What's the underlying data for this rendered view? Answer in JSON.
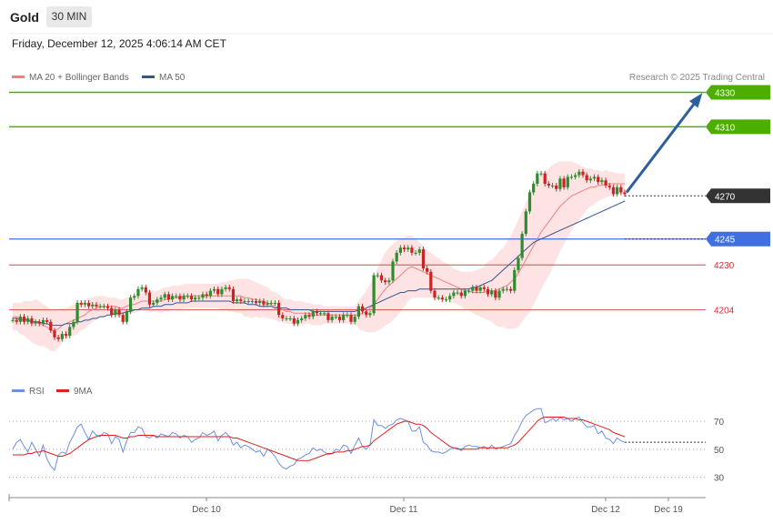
{
  "header": {
    "instrument": "Gold",
    "timeframe": "30 MIN",
    "datetime": "Friday, December 12, 2025 4:06:14 AM CET"
  },
  "legend": {
    "ma20": "MA 20 + Bollinger Bands",
    "ma50": "MA 50",
    "rsi": "RSI",
    "rsi_ma": "9MA"
  },
  "credit": "Research © 2025 Trading Central",
  "colors": {
    "up": "#2e8b2e",
    "down": "#cc2222",
    "target": "#4caf00",
    "pivot": "#3f6fe0",
    "support": "#cc3333",
    "ma20": "#f08080",
    "ma50": "#33558f",
    "band": "#fde3e3",
    "rsi": "#6f8fdf",
    "rsi_ma": "#dd2222",
    "arrow": "#2d5f9e",
    "last": "#333333"
  },
  "chart_data": [
    {
      "type": "candlestick",
      "title": "Gold 30 MIN",
      "x_ticks": [
        "Dec 10",
        "Dec 11",
        "Dec 12",
        "Dec 19"
      ],
      "ylim": [
        4170,
        4335
      ],
      "levels": [
        {
          "value": 4330,
          "label": "4330",
          "kind": "target"
        },
        {
          "value": 4310,
          "label": "4310",
          "kind": "target"
        },
        {
          "value": 4270,
          "label": "4270",
          "kind": "last"
        },
        {
          "value": 4245,
          "label": "4245",
          "kind": "pivot"
        },
        {
          "value": 4230,
          "label": "4230",
          "kind": "support"
        },
        {
          "value": 4204,
          "label": "4204",
          "kind": "support"
        }
      ],
      "closes": [
        4198,
        4197,
        4200,
        4197,
        4199,
        4196,
        4197,
        4196,
        4198,
        4197,
        4192,
        4188,
        4187,
        4190,
        4189,
        4194,
        4197,
        4208,
        4207,
        4208,
        4206,
        4207,
        4206,
        4206,
        4206,
        4205,
        4201,
        4204,
        4201,
        4197,
        4203,
        4211,
        4212,
        4216,
        4217,
        4214,
        4207,
        4208,
        4210,
        4211,
        4213,
        4210,
        4212,
        4212,
        4210,
        4212,
        4212,
        4210,
        4211,
        4211,
        4213,
        4212,
        4215,
        4216,
        4213,
        4216,
        4217,
        4216,
        4209,
        4210,
        4209,
        4209,
        4209,
        4209,
        4208,
        4209,
        4207,
        4208,
        4208,
        4208,
        4201,
        4199,
        4199,
        4199,
        4196,
        4198,
        4199,
        4201,
        4200,
        4203,
        4202,
        4202,
        4202,
        4198,
        4200,
        4200,
        4198,
        4201,
        4201,
        4197,
        4200,
        4206,
        4203,
        4201,
        4202,
        4224,
        4224,
        4221,
        4220,
        4221,
        4232,
        4237,
        4240,
        4239,
        4240,
        4237,
        4237,
        4239,
        4228,
        4226,
        4215,
        4211,
        4211,
        4210,
        4210,
        4212,
        4214,
        4214,
        4212,
        4215,
        4215,
        4217,
        4215,
        4217,
        4216,
        4213,
        4215,
        4211,
        4215,
        4216,
        4216,
        4215,
        4227,
        4234,
        4248,
        4261,
        4272,
        4277,
        4283,
        4283,
        4277,
        4276,
        4276,
        4274,
        4280,
        4275,
        4281,
        4281,
        4282,
        4284,
        4282,
        4279,
        4280,
        4281,
        4278,
        4279,
        4276,
        4275,
        4271,
        4275,
        4272,
        4271
      ],
      "ma20": [
        4200,
        4200,
        4199,
        4199,
        4198,
        4197,
        4197,
        4196,
        4195,
        4194,
        4192,
        4192,
        4193,
        4195,
        4196,
        4197,
        4198,
        4199,
        4200,
        4201,
        4203,
        4204,
        4205,
        4206,
        4206,
        4206,
        4206,
        4206,
        4205,
        4205,
        4206,
        4207,
        4207,
        4208,
        4209,
        4209,
        4209,
        4209,
        4209,
        4209,
        4210,
        4210,
        4211,
        4211,
        4211,
        4212,
        4212,
        4212,
        4212,
        4212,
        4212,
        4212,
        4212,
        4212,
        4212,
        4212,
        4212,
        4212,
        4212,
        4212,
        4212,
        4211,
        4211,
        4210,
        4210,
        4209,
        4209,
        4208,
        4207,
        4206,
        4205,
        4204,
        4203,
        4203,
        4202,
        4202,
        4202,
        4202,
        4202,
        4201,
        4201,
        4201,
        4201,
        4201,
        4201,
        4201,
        4201,
        4201,
        4201,
        4201,
        4201,
        4201,
        4202,
        4203,
        4205,
        4207,
        4210,
        4213,
        4216,
        4218,
        4220,
        4222,
        4224,
        4226,
        4228,
        4229,
        4228,
        4227,
        4226,
        4225,
        4224,
        4223,
        4222,
        4221,
        4220,
        4219,
        4218,
        4217,
        4216,
        4215,
        4215,
        4214,
        4214,
        4214,
        4214,
        4215,
        4215,
        4215,
        4216,
        4217,
        4218,
        4220,
        4222,
        4225,
        4229,
        4233,
        4237,
        4241,
        4245,
        4249,
        4252,
        4255,
        4258,
        4261,
        4264,
        4266,
        4268,
        4270,
        4271,
        4272,
        4273,
        4274,
        4275,
        4275,
        4276,
        4276,
        4277,
        4277,
        4277,
        4277,
        4277,
        4277
      ],
      "ma50": [
        4199,
        4199,
        4198,
        4198,
        4198,
        4197,
        4197,
        4197,
        4196,
        4196,
        4195,
        4195,
        4195,
        4195,
        4196,
        4196,
        4196,
        4197,
        4197,
        4198,
        4198,
        4199,
        4199,
        4200,
        4200,
        4201,
        4201,
        4202,
        4202,
        4202,
        4203,
        4203,
        4204,
        4204,
        4205,
        4205,
        4205,
        4206,
        4206,
        4206,
        4207,
        4207,
        4207,
        4208,
        4208,
        4208,
        4208,
        4209,
        4209,
        4209,
        4209,
        4209,
        4209,
        4209,
        4209,
        4209,
        4209,
        4209,
        4208,
        4208,
        4208,
        4208,
        4207,
        4207,
        4207,
        4206,
        4206,
        4206,
        4206,
        4205,
        4205,
        4205,
        4205,
        4204,
        4204,
        4204,
        4204,
        4204,
        4204,
        4203,
        4203,
        4203,
        4203,
        4203,
        4203,
        4203,
        4203,
        4203,
        4203,
        4203,
        4203,
        4204,
        4204,
        4205,
        4206,
        4207,
        4208,
        4209,
        4210,
        4211,
        4212,
        4213,
        4214,
        4214,
        4215,
        4215,
        4215,
        4216,
        4216,
        4216,
        4216,
        4216,
        4216,
        4216,
        4216,
        4216,
        4216,
        4216,
        4216,
        4216,
        4216,
        4217,
        4217,
        4218,
        4219,
        4220,
        4221,
        4223,
        4225,
        4227,
        4229,
        4231,
        4233,
        4235,
        4237,
        4239,
        4241,
        4243,
        4244,
        4245,
        4246,
        4247,
        4248,
        4249,
        4250,
        4251,
        4252,
        4253,
        4254,
        4255,
        4256,
        4257,
        4258,
        4259,
        4260,
        4261,
        4262,
        4263,
        4264,
        4265,
        4266,
        4267
      ],
      "band_width": [
        8,
        8,
        9,
        10,
        11,
        12,
        13,
        13,
        12,
        12,
        12,
        12,
        11,
        10,
        9,
        9,
        9,
        9,
        8,
        8,
        8,
        7,
        7,
        6,
        6,
        5,
        5,
        5,
        5,
        5,
        5,
        5,
        5,
        5,
        5,
        5,
        6,
        6,
        6,
        7,
        7,
        7,
        7,
        7,
        7,
        7,
        7,
        7,
        7,
        7,
        7,
        7,
        7,
        7,
        7,
        8,
        8,
        9,
        9,
        10,
        10,
        11,
        11,
        11,
        10,
        10,
        9,
        9,
        8,
        8,
        8,
        7,
        7,
        7,
        7,
        7,
        7,
        6,
        6,
        6,
        6,
        6,
        5,
        5,
        5,
        5,
        5,
        5,
        5,
        5,
        5,
        8,
        10,
        12,
        14,
        16,
        18,
        20,
        21,
        22,
        22,
        22,
        21,
        20,
        19,
        18,
        17,
        16,
        15,
        14,
        13,
        12,
        12,
        11,
        11,
        11,
        10,
        10,
        10,
        11,
        11,
        12,
        13,
        14,
        15,
        17,
        18,
        20,
        22,
        23,
        25,
        27,
        29,
        31,
        32,
        33,
        34,
        34,
        34,
        33,
        32,
        31,
        30,
        28,
        26,
        24,
        22,
        20,
        18,
        16,
        14,
        12,
        11,
        10,
        9,
        8,
        8,
        7,
        7,
        6,
        6,
        6
      ]
    },
    {
      "type": "line",
      "title": "RSI",
      "y_ticks": [
        30,
        50,
        70
      ],
      "ylim": [
        20,
        85
      ],
      "series": [
        {
          "name": "RSI",
          "values": [
            50,
            55,
            57,
            52,
            48,
            55,
            50,
            45,
            53,
            43,
            38,
            35,
            46,
            48,
            47,
            55,
            60,
            66,
            68,
            62,
            57,
            63,
            60,
            59,
            62,
            61,
            54,
            59,
            57,
            48,
            56,
            62,
            62,
            66,
            65,
            59,
            58,
            60,
            58,
            61,
            60,
            59,
            62,
            61,
            58,
            60,
            59,
            55,
            57,
            58,
            62,
            60,
            61,
            63,
            56,
            60,
            62,
            59,
            53,
            55,
            51,
            53,
            52,
            50,
            48,
            49,
            45,
            50,
            48,
            45,
            40,
            37,
            36,
            38,
            39,
            43,
            44,
            46,
            47,
            51,
            49,
            50,
            48,
            46,
            47,
            50,
            49,
            53,
            52,
            47,
            53,
            58,
            52,
            50,
            53,
            71,
            67,
            67,
            65,
            67,
            68,
            71,
            72,
            71,
            70,
            63,
            63,
            66,
            55,
            53,
            49,
            48,
            48,
            47,
            48,
            50,
            51,
            51,
            49,
            52,
            53,
            52,
            52,
            51,
            52,
            50,
            53,
            50,
            51,
            52,
            53,
            54,
            60,
            64,
            70,
            74,
            76,
            78,
            79,
            79,
            69,
            70,
            72,
            70,
            73,
            71,
            72,
            70,
            72,
            73,
            69,
            66,
            66,
            67,
            61,
            63,
            58,
            57,
            54,
            58,
            56,
            55
          ]
        },
        {
          "name": "9MA",
          "values": [
            46,
            46,
            46,
            46,
            47,
            47,
            48,
            48,
            49,
            48,
            47,
            46,
            45,
            45,
            46,
            47,
            49,
            51,
            53,
            55,
            57,
            58,
            59,
            60,
            60,
            60,
            60,
            60,
            59,
            58,
            58,
            59,
            59,
            60,
            60,
            60,
            60,
            60,
            59,
            59,
            59,
            59,
            59,
            59,
            59,
            59,
            59,
            59,
            59,
            59,
            59,
            59,
            59,
            59,
            59,
            59,
            59,
            59,
            58,
            58,
            57,
            56,
            55,
            54,
            53,
            52,
            51,
            50,
            49,
            48,
            47,
            46,
            45,
            44,
            43,
            42,
            42,
            42,
            42,
            43,
            44,
            45,
            46,
            47,
            47,
            48,
            48,
            48,
            49,
            49,
            50,
            51,
            52,
            52,
            53,
            56,
            58,
            60,
            62,
            64,
            66,
            68,
            69,
            70,
            70,
            69,
            68,
            68,
            67,
            65,
            62,
            60,
            58,
            56,
            54,
            52,
            51,
            50,
            50,
            50,
            50,
            50,
            50,
            51,
            51,
            51,
            51,
            51,
            51,
            51,
            51,
            52,
            53,
            55,
            58,
            61,
            64,
            67,
            70,
            72,
            73,
            73,
            73,
            73,
            73,
            73,
            72,
            72,
            72,
            71,
            71,
            70,
            69,
            68,
            67,
            66,
            65,
            64,
            62,
            61,
            60,
            59
          ]
        }
      ]
    }
  ]
}
